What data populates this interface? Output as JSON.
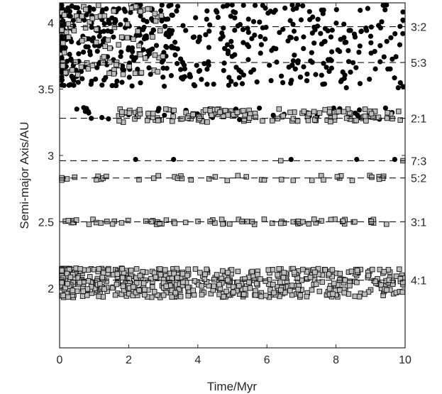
{
  "chart_data": {
    "type": "scatter",
    "title": "",
    "xlabel": "Time/Myr",
    "ylabel": "Semi-major Axis/AU",
    "xlim": [
      0,
      10
    ],
    "ylim": [
      1.55,
      4.15
    ],
    "xticks": [
      0,
      2,
      4,
      6,
      8,
      10
    ],
    "yticks": [
      2,
      2.5,
      3,
      3.5,
      4
    ],
    "grid": false,
    "legend": "none",
    "resonances": [
      {
        "label": "3:2",
        "a": 3.97
      },
      {
        "label": "5:3",
        "a": 3.7
      },
      {
        "label": "2:1",
        "a": 3.28
      },
      {
        "label": "7:3",
        "a": 2.96
      },
      {
        "label": "5:2",
        "a": 2.83
      },
      {
        "label": "3:1",
        "a": 2.5
      },
      {
        "label": "4:1",
        "a": 2.06
      }
    ],
    "series": [
      {
        "marker": "filled-circle",
        "color": "#000000",
        "bands": [
          {
            "t_range": [
              0,
              10
            ],
            "a_range": [
              3.52,
              4.15
            ],
            "count": 520,
            "note": "dense near t<2"
          },
          {
            "t_range": [
              0,
              10
            ],
            "a_range": [
              3.27,
              3.36
            ],
            "count": 45
          },
          {
            "points": [
              [
                2.2,
                2.97
              ],
              [
                3.3,
                2.97
              ],
              [
                6.7,
                2.97
              ],
              [
                8.6,
                2.97
              ],
              [
                9.7,
                2.97
              ],
              [
                0.7,
                3.36
              ],
              [
                9.8,
                3.51
              ],
              [
                9.95,
                3.52
              ],
              [
                8.3,
                3.51
              ]
            ]
          }
        ]
      },
      {
        "marker": "gray-square",
        "color": "#bdbdbd",
        "bands": [
          {
            "t_range": [
              0,
              3
            ],
            "a_range": [
              3.6,
              4.14
            ],
            "count": 90
          },
          {
            "t_range": [
              1.7,
              9.9
            ],
            "a_range": [
              3.25,
              3.35
            ],
            "count": 150
          },
          {
            "points": [
              [
                6.4,
                2.96
              ],
              [
                10.0,
                2.96
              ]
            ]
          },
          {
            "t_range": [
              0,
              9.7
            ],
            "a_range": [
              2.81,
              2.85
            ],
            "count": 40
          },
          {
            "t_range": [
              0,
              9.6
            ],
            "a_range": [
              2.48,
              2.52
            ],
            "count": 70
          },
          {
            "t_range": [
              0,
              10
            ],
            "a_range": [
              1.93,
              2.15
            ],
            "count": 600,
            "note": "dense near t<5"
          }
        ]
      }
    ]
  }
}
